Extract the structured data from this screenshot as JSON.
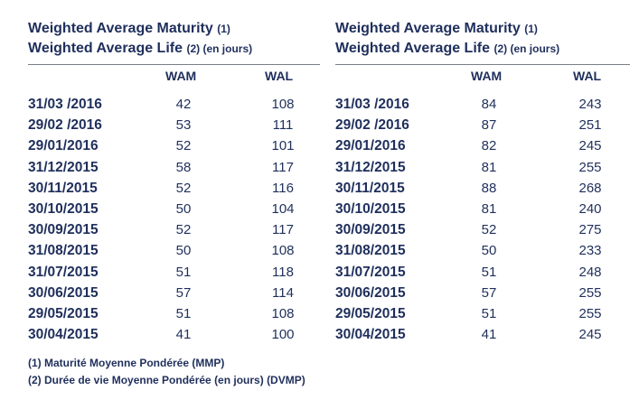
{
  "left": {
    "title_line1": "Weighted Average Maturity",
    "title_line1_note": "(1)",
    "title_line2": "Weighted Average Life",
    "title_line2_note": "(2) (en jours)",
    "col_wam": "WAM",
    "col_wal": "WAL",
    "rows": [
      {
        "date": "31/03 /2016",
        "wam": "42",
        "wal": "108"
      },
      {
        "date": "29/02 /2016",
        "wam": "53",
        "wal": "111"
      },
      {
        "date": "29/01/2016",
        "wam": "52",
        "wal": "101"
      },
      {
        "date": "31/12/2015",
        "wam": "58",
        "wal": "117"
      },
      {
        "date": "30/11/2015",
        "wam": "52",
        "wal": "116"
      },
      {
        "date": "30/10/2015",
        "wam": "50",
        "wal": "104"
      },
      {
        "date": "30/09/2015",
        "wam": "52",
        "wal": "117"
      },
      {
        "date": "31/08/2015",
        "wam": "50",
        "wal": "108"
      },
      {
        "date": "31/07/2015",
        "wam": "51",
        "wal": "118"
      },
      {
        "date": "30/06/2015",
        "wam": "57",
        "wal": "114"
      },
      {
        "date": "29/05/2015",
        "wam": "51",
        "wal": "108"
      },
      {
        "date": "30/04/2015",
        "wam": "41",
        "wal": "100"
      }
    ]
  },
  "right": {
    "title_line1": "Weighted Average Maturity",
    "title_line1_note": "(1)",
    "title_line2": "Weighted Average Life",
    "title_line2_note": "(2) (en jours)",
    "col_wam": "WAM",
    "col_wal": "WAL",
    "rows": [
      {
        "date": "31/03 /2016",
        "wam": "84",
        "wal": "243"
      },
      {
        "date": "29/02 /2016",
        "wam": "87",
        "wal": "251"
      },
      {
        "date": "29/01/2016",
        "wam": "82",
        "wal": "245"
      },
      {
        "date": "31/12/2015",
        "wam": "81",
        "wal": "255"
      },
      {
        "date": "30/11/2015",
        "wam": "88",
        "wal": "268"
      },
      {
        "date": "30/10/2015",
        "wam": "81",
        "wal": "240"
      },
      {
        "date": "30/09/2015",
        "wam": "52",
        "wal": "275"
      },
      {
        "date": "31/08/2015",
        "wam": "50",
        "wal": "233"
      },
      {
        "date": "31/07/2015",
        "wam": "51",
        "wal": "248"
      },
      {
        "date": "30/06/2015",
        "wam": "57",
        "wal": "255"
      },
      {
        "date": "29/05/2015",
        "wam": "51",
        "wal": "255"
      },
      {
        "date": "30/04/2015",
        "wam": "41",
        "wal": "245"
      }
    ]
  },
  "footnotes": {
    "note1": "(1) Maturité Moyenne Pondérée (MMP)",
    "note2": "(2) Durée de vie Moyenne Pondérée (en jours) (DVMP)"
  }
}
